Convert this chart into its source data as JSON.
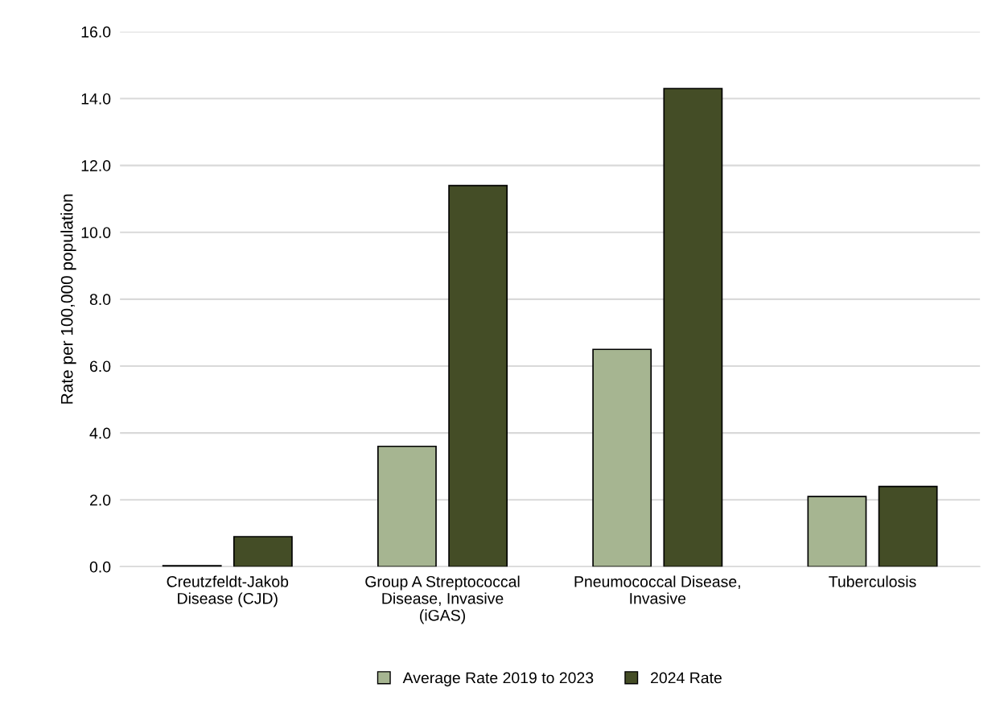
{
  "chart_data": {
    "type": "bar",
    "ylabel": "Rate per 100,000 population",
    "categories": [
      "Creutzfeldt-Jakob\nDisease (CJD)",
      "Group A Streptococcal\nDisease, Invasive\n(iGAS)",
      "Pneumococcal Disease,\nInvasive",
      "Tuberculosis"
    ],
    "series": [
      {
        "name": "Average Rate 2019 to 2023",
        "color": "#a6b591",
        "values": [
          0.03,
          3.6,
          6.5,
          2.1
        ]
      },
      {
        "name": "2024 Rate",
        "color": "#444d26",
        "values": [
          0.9,
          11.4,
          14.3,
          2.4
        ]
      }
    ],
    "ylim": [
      0,
      16
    ],
    "yticks": [
      {
        "value": 0,
        "label": "0.0"
      },
      {
        "value": 2,
        "label": "2.0"
      },
      {
        "value": 4,
        "label": "4.0"
      },
      {
        "value": 6,
        "label": "6.0"
      },
      {
        "value": 8,
        "label": "8.0"
      },
      {
        "value": 10,
        "label": "10.0"
      },
      {
        "value": 12,
        "label": "12.0"
      },
      {
        "value": 14,
        "label": "14.0"
      },
      {
        "value": 16,
        "label": "16.0"
      }
    ],
    "grid": "y",
    "legend": "bottom"
  }
}
